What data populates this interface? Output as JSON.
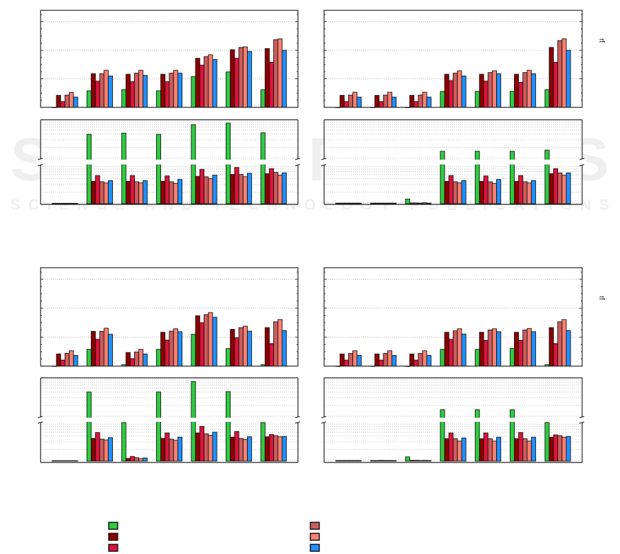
{
  "watermark": {
    "main": "SCITEPRESS",
    "sub": "SCIENCE AND TECHNOLOGY PUBLICATIONS"
  },
  "unit_symbol": "µ",
  "legend": [
    {
      "color": "#2ecc40"
    },
    {
      "color": "#8b0000"
    },
    {
      "color": "#dc143c"
    },
    {
      "color": "#cd5c5c"
    },
    {
      "color": "#fa8072"
    },
    {
      "color": "#1e90ff"
    }
  ],
  "chart_data": [
    {
      "type": "bar",
      "panel": "top-left",
      "groups": 7,
      "grid": true,
      "top": {
        "ylim": [
          0,
          3.4
        ],
        "gridlines": [
          1,
          2,
          3
        ],
        "series": [
          {
            "color": "#2ecc40",
            "values": [
              0,
              0.58,
              0.62,
              0.58,
              1.08,
              1.24,
              0.62
            ]
          },
          {
            "color": "#8b0000",
            "values": [
              0.42,
              1.18,
              1.16,
              1.16,
              1.72,
              2.02,
              2.06
            ]
          },
          {
            "color": "#dc143c",
            "values": [
              0.2,
              0.92,
              0.9,
              0.9,
              1.48,
              1.72,
              1.58
            ]
          },
          {
            "color": "#cd5c5c",
            "values": [
              0.43,
              1.18,
              1.2,
              1.2,
              1.78,
              2.1,
              2.37
            ]
          },
          {
            "color": "#fa8072",
            "values": [
              0.52,
              1.3,
              1.3,
              1.3,
              1.84,
              2.12,
              2.4
            ]
          },
          {
            "color": "#1e90ff",
            "values": [
              0.36,
              1.1,
              1.12,
              1.2,
              1.68,
              1.96,
              2.0
            ]
          }
        ]
      },
      "bottom": {
        "lower_ylim": [
          0,
          10
        ],
        "upper_ylim": [
          10,
          20
        ],
        "series": [
          {
            "color": "#2ecc40",
            "values": [
              0.1,
              16.4,
              16.7,
              16.4,
              18.9,
              19.3,
              16.8
            ]
          },
          {
            "color": "#8b0000",
            "values": [
              0.1,
              5.8,
              5.8,
              5.8,
              7.1,
              7.6,
              7.8
            ]
          },
          {
            "color": "#dc143c",
            "values": [
              0.1,
              7.3,
              7.3,
              7.2,
              8.9,
              9.4,
              9.1
            ]
          },
          {
            "color": "#cd5c5c",
            "values": [
              0.1,
              5.7,
              5.7,
              5.7,
              7.0,
              7.6,
              8.1
            ]
          },
          {
            "color": "#fa8072",
            "values": [
              0.1,
              5.4,
              5.4,
              5.3,
              6.5,
              7.0,
              7.4
            ]
          },
          {
            "color": "#1e90ff",
            "values": [
              0.1,
              6.0,
              6.0,
              6.3,
              7.4,
              7.9,
              8.0
            ]
          }
        ]
      }
    },
    {
      "type": "bar",
      "panel": "top-right",
      "groups": 7,
      "grid": true,
      "top": {
        "ylim": [
          0,
          3.4
        ],
        "gridlines": [
          1,
          2,
          3
        ],
        "series": [
          {
            "color": "#2ecc40",
            "values": [
              0,
              0,
              0,
              0.56,
              0.56,
              0.56,
              0.62
            ]
          },
          {
            "color": "#8b0000",
            "values": [
              0.42,
              0.42,
              0.42,
              1.16,
              1.16,
              1.16,
              2.1
            ]
          },
          {
            "color": "#dc143c",
            "values": [
              0.2,
              0.2,
              0.2,
              0.94,
              0.92,
              0.88,
              1.58
            ]
          },
          {
            "color": "#cd5c5c",
            "values": [
              0.43,
              0.43,
              0.43,
              1.2,
              1.22,
              1.22,
              2.34
            ]
          },
          {
            "color": "#fa8072",
            "values": [
              0.53,
              0.53,
              0.53,
              1.28,
              1.28,
              1.3,
              2.4
            ]
          },
          {
            "color": "#1e90ff",
            "values": [
              0.36,
              0.36,
              0.36,
              1.1,
              1.18,
              1.18,
              2.0
            ]
          }
        ]
      },
      "bottom": {
        "lower_ylim": [
          0,
          10
        ],
        "upper_ylim": [
          10,
          20
        ],
        "series": [
          {
            "color": "#2ecc40",
            "values": [
              0.15,
              0.15,
              1.2,
              12.0,
              12.0,
              12.0,
              12.3
            ]
          },
          {
            "color": "#8b0000",
            "values": [
              0.15,
              0.15,
              0.2,
              5.8,
              5.8,
              5.8,
              7.8
            ]
          },
          {
            "color": "#dc143c",
            "values": [
              0.15,
              0.15,
              0.2,
              7.3,
              7.2,
              7.3,
              9.1
            ]
          },
          {
            "color": "#cd5c5c",
            "values": [
              0.15,
              0.15,
              0.15,
              5.7,
              5.7,
              5.7,
              8.0
            ]
          },
          {
            "color": "#fa8072",
            "values": [
              0.15,
              0.15,
              0.25,
              5.4,
              5.3,
              5.4,
              7.4
            ]
          },
          {
            "color": "#1e90ff",
            "values": [
              0.15,
              0.15,
              0.15,
              6.0,
              6.3,
              6.0,
              8.0
            ]
          }
        ]
      }
    },
    {
      "type": "bar",
      "panel": "bottom-left",
      "groups": 7,
      "grid": true,
      "top": {
        "ylim": [
          0,
          3.4
        ],
        "gridlines": [
          1,
          2,
          3
        ],
        "series": [
          {
            "color": "#2ecc40",
            "values": [
              0,
              0.58,
              0.05,
              0.58,
              1.1,
              0.61,
              0.05
            ]
          },
          {
            "color": "#8b0000",
            "values": [
              0.42,
              1.2,
              0.47,
              1.17,
              1.74,
              1.27,
              1.33
            ]
          },
          {
            "color": "#dc143c",
            "values": [
              0.21,
              0.93,
              0.26,
              0.9,
              1.5,
              0.98,
              0.78
            ]
          },
          {
            "color": "#cd5c5c",
            "values": [
              0.44,
              1.2,
              0.49,
              1.21,
              1.78,
              1.33,
              1.53
            ]
          },
          {
            "color": "#fa8072",
            "values": [
              0.53,
              1.31,
              0.58,
              1.29,
              1.85,
              1.38,
              1.61
            ]
          },
          {
            "color": "#1e90ff",
            "values": [
              0.37,
              1.1,
              0.42,
              1.19,
              1.69,
              1.21,
              1.23
            ]
          }
        ]
      },
      "bottom": {
        "lower_ylim": [
          0,
          10
        ],
        "upper_ylim": [
          10,
          20
        ],
        "series": [
          {
            "color": "#2ecc40",
            "values": [
              0.1,
              16.5,
              10,
              16.5,
              19.2,
              16.6,
              10
            ]
          },
          {
            "color": "#8b0000",
            "values": [
              0.1,
              5.9,
              0.7,
              5.9,
              7.3,
              6.2,
              6.3
            ]
          },
          {
            "color": "#dc143c",
            "values": [
              0.1,
              7.4,
              1.2,
              7.3,
              9.0,
              7.7,
              6.9
            ]
          },
          {
            "color": "#cd5c5c",
            "values": [
              0.1,
              5.7,
              0.9,
              5.7,
              7.1,
              5.9,
              6.6
            ]
          },
          {
            "color": "#fa8072",
            "values": [
              0.1,
              5.5,
              0.6,
              5.4,
              6.7,
              5.6,
              6.3
            ]
          },
          {
            "color": "#1e90ff",
            "values": [
              0.1,
              6.1,
              0.8,
              6.2,
              7.5,
              6.3,
              6.4
            ]
          }
        ]
      }
    },
    {
      "type": "bar",
      "panel": "bottom-right",
      "groups": 7,
      "grid": true,
      "top": {
        "ylim": [
          0,
          3.4
        ],
        "gridlines": [
          1,
          2,
          3
        ],
        "series": [
          {
            "color": "#2ecc40",
            "values": [
              0,
              0,
              0,
              0.58,
              0.58,
              0.61,
              0.05
            ]
          },
          {
            "color": "#8b0000",
            "values": [
              0.42,
              0.42,
              0.42,
              1.17,
              1.17,
              1.17,
              1.33
            ]
          },
          {
            "color": "#dc143c",
            "values": [
              0.21,
              0.21,
              0.21,
              0.93,
              0.89,
              0.89,
              0.78
            ]
          },
          {
            "color": "#cd5c5c",
            "values": [
              0.44,
              0.44,
              0.44,
              1.22,
              1.25,
              1.25,
              1.53
            ]
          },
          {
            "color": "#fa8072",
            "values": [
              0.53,
              0.53,
              0.53,
              1.29,
              1.29,
              1.3,
              1.61
            ]
          },
          {
            "color": "#1e90ff",
            "values": [
              0.37,
              0.37,
              0.37,
              1.11,
              1.19,
              1.19,
              1.23
            ]
          }
        ]
      },
      "bottom": {
        "lower_ylim": [
          0,
          10
        ],
        "upper_ylim": [
          10,
          20
        ],
        "series": [
          {
            "color": "#2ecc40",
            "values": [
              0.15,
              0.15,
              1.1,
              11.9,
              11.9,
              11.9,
              10
            ]
          },
          {
            "color": "#8b0000",
            "values": [
              0.15,
              0.15,
              0.2,
              5.8,
              5.8,
              5.8,
              6.2
            ]
          },
          {
            "color": "#dc143c",
            "values": [
              0.15,
              0.2,
              0.2,
              7.3,
              7.3,
              7.4,
              6.8
            ]
          },
          {
            "color": "#cd5c5c",
            "values": [
              0.15,
              0.15,
              0.15,
              5.8,
              5.8,
              5.8,
              6.6
            ]
          },
          {
            "color": "#fa8072",
            "values": [
              0.15,
              0.15,
              0.2,
              5.2,
              5.2,
              5.2,
              6.2
            ]
          },
          {
            "color": "#1e90ff",
            "values": [
              0.15,
              0.15,
              0.15,
              6.0,
              6.2,
              6.2,
              6.4
            ]
          }
        ]
      }
    }
  ]
}
